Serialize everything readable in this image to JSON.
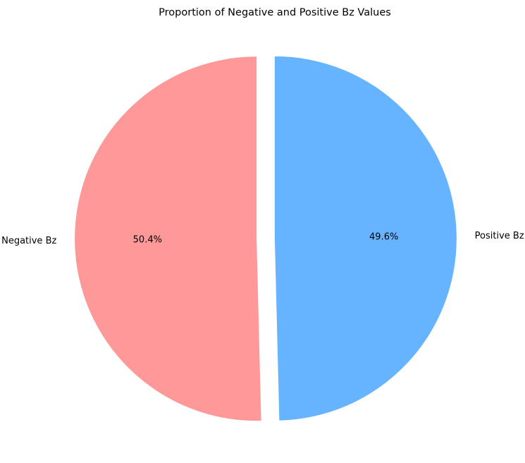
{
  "chart_data": {
    "type": "pie",
    "title": "Proportion of Negative and Positive Bz Values",
    "start_angle_deg": 90,
    "counterclockwise": true,
    "explode_fraction": 0.05,
    "slices": [
      {
        "label": "Negative Bz",
        "value": 50.4,
        "pct_label": "50.4%",
        "color": "#ff9999"
      },
      {
        "label": "Positive Bz",
        "value": 49.6,
        "pct_label": "49.6%",
        "color": "#66b3ff"
      }
    ]
  }
}
